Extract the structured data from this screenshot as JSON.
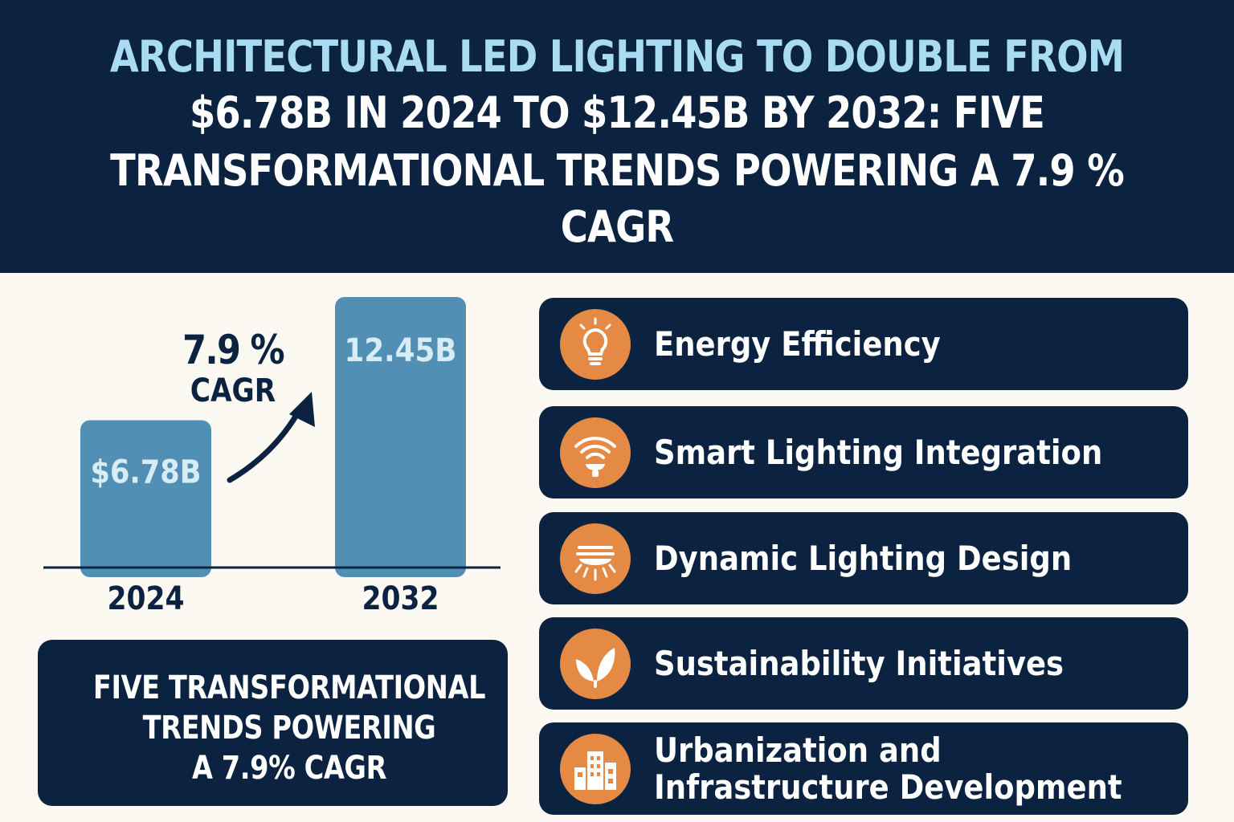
{
  "header": {
    "title_line1": "ARCHITECTURAL LED LIGHTING TO DOUBLE FROM",
    "title_line2": "$6.78B IN 2024 TO $12.45B BY 2032: FIVE",
    "title_line3": "TRANSFORMATIONAL TRENDS POWERING A 7.9 %",
    "title_line4": "CAGR",
    "accent_color": "#a9dcf2",
    "background_color": "#0b2340"
  },
  "chart_data": {
    "type": "bar",
    "categories": [
      "2024",
      "2032"
    ],
    "values": [
      6.78,
      12.45
    ],
    "value_labels": [
      "$6.78B",
      "12.45B"
    ],
    "unit": "B",
    "ylim": [
      0,
      12.45
    ],
    "bar_color": "#5190b4",
    "annotation": {
      "pct": "7.9 %",
      "label": "CAGR"
    }
  },
  "summary": {
    "line1": "FIVE TRANSFORMATIONAL",
    "line2": "TRENDS POWERING",
    "line3": "A 7.9% CAGR"
  },
  "trends": [
    {
      "label": "Energy Efficiency",
      "icon": "lightbulb-icon"
    },
    {
      "label": "Smart Lighting Integration",
      "icon": "wifi-bulb-icon"
    },
    {
      "label": "Dynamic Lighting Design",
      "icon": "light-fixture-icon"
    },
    {
      "label": "Sustainability Initiatives",
      "icon": "leaf-icon"
    },
    {
      "label_line1": "Urbanization and",
      "label_line2": "Infrastructure Development",
      "icon": "buildings-icon"
    }
  ],
  "colors": {
    "navy": "#0b2340",
    "orange": "#e58a45",
    "cream": "#fbf9f1"
  }
}
